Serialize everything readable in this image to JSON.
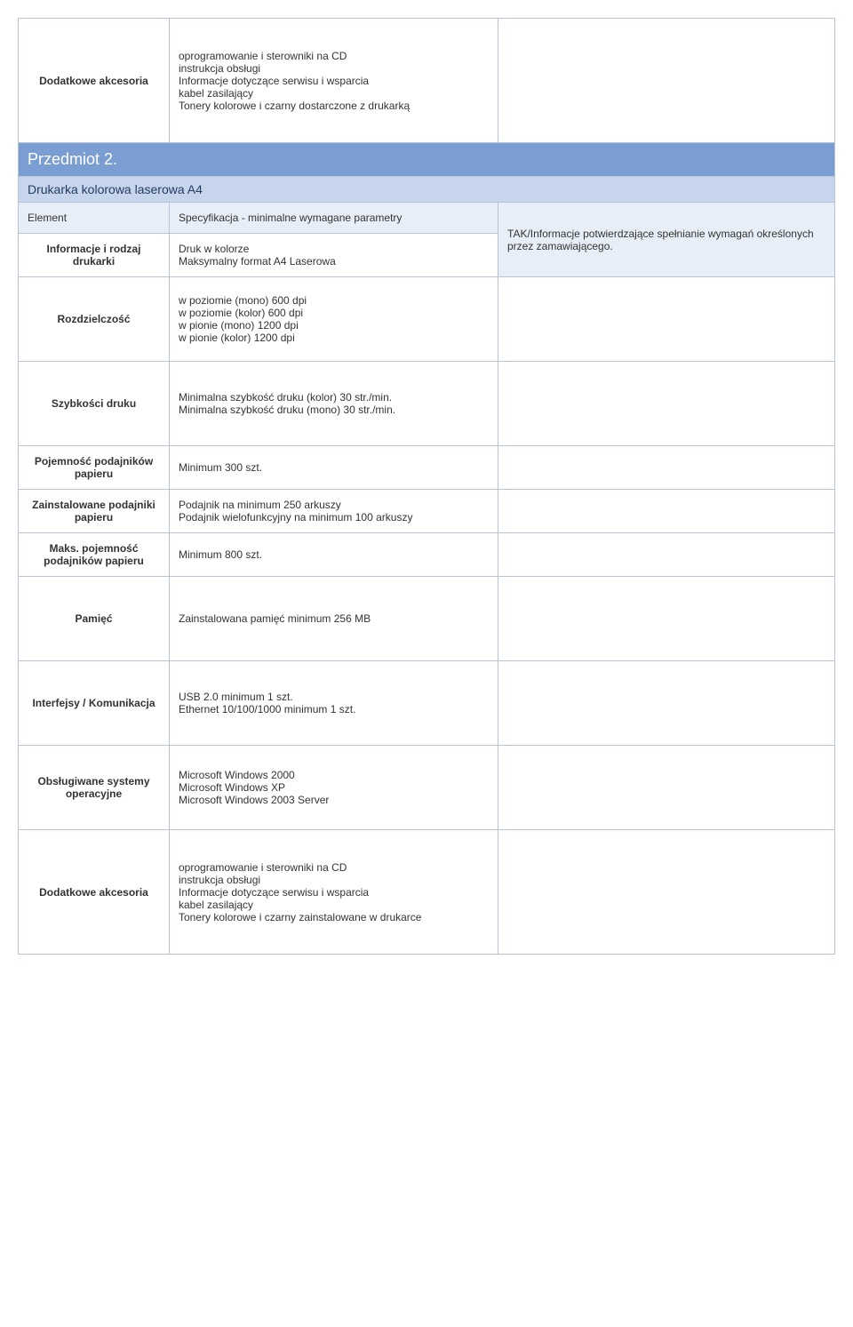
{
  "top_row": {
    "label": "Dodatkowe akcesoria",
    "value": "oprogramowanie i sterowniki na CD\ninstrukcja obsługi\nInformacje dotyczące serwisu i wsparcia\nkabel zasilający\nTonery kolorowe i czarny dostarczone z drukarką"
  },
  "section": {
    "title": "Przedmiot  2.",
    "subtitle": "Drukarka kolorowa laserowa A4",
    "col_headers": {
      "c1": "Element",
      "c2": "Specyfikacja  -  minimalne wymagane parametry",
      "c3": "TAK/Informacje potwierdzające spełnianie wymagań określonych przez zamawiającego."
    }
  },
  "rows": [
    {
      "label": "Informacje i rodzaj drukarki",
      "value": "Druk w kolorze\nMaksymalny format A4 Laserowa"
    },
    {
      "label": "Rozdzielczość",
      "value": "w poziomie (mono) 600 dpi\nw poziomie (kolor) 600 dpi\nw pionie (mono) 1200 dpi\nw pionie (kolor) 1200 dpi"
    },
    {
      "label": "Szybkości druku",
      "value": "Minimalna szybkość druku (kolor) 30 str./min.\nMinimalna szybkość druku (mono) 30 str./min."
    },
    {
      "label": "Pojemność podajników papieru",
      "value": "Minimum 300 szt."
    },
    {
      "label": "Zainstalowane podajniki papieru",
      "value": "Podajnik na minimum 250 arkuszy\nPodajnik wielofunkcyjny na minimum 100 arkuszy"
    },
    {
      "label": "Maks. pojemność podajników papieru",
      "value": " Minimum 800 szt."
    },
    {
      "label": "Pamięć",
      "value": "Zainstalowana pamięć minimum 256 MB"
    },
    {
      "label": "Interfejsy / Komunikacja",
      "value": "USB 2.0 minimum 1 szt.\nEthernet 10/100/1000 minimum 1 szt."
    },
    {
      "label": "Obsługiwane systemy operacyjne",
      "value": "Microsoft Windows 2000\nMicrosoft Windows XP\nMicrosoft Windows 2003 Server"
    },
    {
      "label": "Dodatkowe akcesoria",
      "value": "oprogramowanie i sterowniki na CD\ninstrukcja obsługi\nInformacje dotyczące serwisu i wsparcia\nkabel zasilający\nTonery kolorowe i czarny zainstalowane w drukarce"
    }
  ]
}
